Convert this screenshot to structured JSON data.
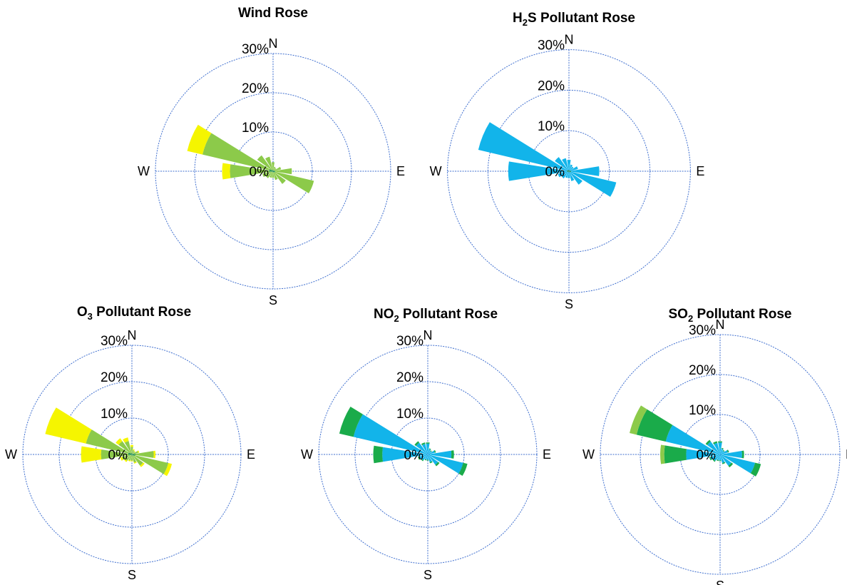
{
  "colors": {
    "ring": "#3f6fcf",
    "dark_green": "#0a8a3a",
    "green": "#1aab4a",
    "light_green": "#8cca4a",
    "yellow": "#f5f500",
    "cyan": "#12b4ea"
  },
  "chart_data": [
    {
      "type": "polar-bar",
      "title": "Wind Rose",
      "directions": [
        "N",
        "E",
        "S",
        "W"
      ],
      "radial_ticks": [
        "0%",
        "10%",
        "20%",
        "30%"
      ],
      "rlim": [
        0,
        30
      ],
      "sectors": 16,
      "stack_order": [
        "dark_green",
        "light_green",
        "yellow"
      ],
      "stacks": [
        [
          0.3,
          2.0,
          0.0
        ],
        [
          0.2,
          1.0,
          0.0
        ],
        [
          0.2,
          0.8,
          0.0
        ],
        [
          0.3,
          1.8,
          0.0
        ],
        [
          0.5,
          4.3,
          0.0
        ],
        [
          0.6,
          10.1,
          0.0
        ],
        [
          0.3,
          3.7,
          0.0
        ],
        [
          0.3,
          2.0,
          0.0
        ],
        [
          0.2,
          1.5,
          0.0
        ],
        [
          0.2,
          1.5,
          0.0
        ],
        [
          0.2,
          2.0,
          0.0
        ],
        [
          0.3,
          2.5,
          0.0
        ],
        [
          1.0,
          10.0,
          2.0
        ],
        [
          1.0,
          17.5,
          4.0
        ],
        [
          0.5,
          4.5,
          0.0
        ],
        [
          0.3,
          3.5,
          0.0
        ]
      ]
    },
    {
      "type": "polar-bar",
      "title_main": "H",
      "title_sub": "2",
      "title_rest": "S Pollutant Rose",
      "directions": [
        "N",
        "E",
        "S",
        "W"
      ],
      "radial_ticks": [
        "0%",
        "10%",
        "20%",
        "30%"
      ],
      "rlim": [
        0,
        30
      ],
      "sectors": 16,
      "stack_order": [
        "dark_green",
        "cyan"
      ],
      "stacks": [
        [
          0.3,
          2.5
        ],
        [
          0.2,
          1.5
        ],
        [
          0.2,
          1.2
        ],
        [
          0.3,
          2.0
        ],
        [
          0.5,
          7.0
        ],
        [
          0.5,
          11.5
        ],
        [
          0.3,
          3.8
        ],
        [
          0.3,
          2.2
        ],
        [
          0.2,
          1.5
        ],
        [
          0.2,
          1.5
        ],
        [
          0.2,
          2.0
        ],
        [
          0.3,
          2.5
        ],
        [
          0.5,
          14.5
        ],
        [
          0.5,
          22.5
        ],
        [
          0.3,
          4.0
        ],
        [
          0.3,
          3.0
        ]
      ]
    },
    {
      "type": "polar-bar",
      "title_main": "O",
      "title_sub": "3",
      "title_rest": " Pollutant Rose",
      "directions": [
        "N",
        "E",
        "S",
        "W"
      ],
      "radial_ticks": [
        "0%",
        "10%",
        "20%",
        "30%"
      ],
      "rlim": [
        0,
        30
      ],
      "sectors": 16,
      "stack_order": [
        "dark_green",
        "light_green",
        "yellow"
      ],
      "stacks": [
        [
          0.3,
          1.8,
          0.5
        ],
        [
          0.2,
          1.0,
          0.3
        ],
        [
          0.2,
          0.8,
          0.2
        ],
        [
          0.3,
          1.5,
          0.3
        ],
        [
          1.0,
          5.0,
          0.5
        ],
        [
          0.8,
          9.5,
          1.0
        ],
        [
          0.3,
          3.5,
          0.5
        ],
        [
          0.3,
          2.0,
          0.3
        ],
        [
          0.2,
          1.5,
          0.2
        ],
        [
          0.2,
          1.5,
          0.3
        ],
        [
          0.2,
          2.0,
          0.4
        ],
        [
          0.3,
          2.5,
          0.5
        ],
        [
          1.0,
          7.5,
          5.5
        ],
        [
          1.0,
          12.0,
          11.5
        ],
        [
          0.5,
          4.0,
          1.0
        ],
        [
          0.3,
          3.5,
          1.0
        ]
      ]
    },
    {
      "type": "polar-bar",
      "title_main": "NO",
      "title_sub": "2",
      "title_rest": " Pollutant Rose",
      "directions": [
        "N",
        "E",
        "S",
        "W"
      ],
      "radial_ticks": [
        "0%",
        "10%",
        "20%",
        "30%"
      ],
      "rlim": [
        0,
        30
      ],
      "sectors": 16,
      "stack_order": [
        "cyan",
        "green"
      ],
      "stacks": [
        [
          3.0,
          0.3
        ],
        [
          1.5,
          0.2
        ],
        [
          1.2,
          0.2
        ],
        [
          2.0,
          0.3
        ],
        [
          6.5,
          0.7
        ],
        [
          10.0,
          1.2
        ],
        [
          3.5,
          0.5
        ],
        [
          2.2,
          0.3
        ],
        [
          1.5,
          0.2
        ],
        [
          1.5,
          0.2
        ],
        [
          2.0,
          0.3
        ],
        [
          2.5,
          0.3
        ],
        [
          12.5,
          2.5
        ],
        [
          21.0,
          4.0
        ],
        [
          4.0,
          0.5
        ],
        [
          3.0,
          0.4
        ]
      ]
    },
    {
      "type": "polar-bar",
      "title_main": "SO",
      "title_sub": "2",
      "title_rest": "  Pollutant Rose",
      "directions": [
        "N",
        "E",
        "S",
        "W"
      ],
      "radial_ticks": [
        "0%",
        "10%",
        "20%",
        "30%"
      ],
      "rlim": [
        0,
        30
      ],
      "sectors": 16,
      "stack_order": [
        "cyan",
        "green",
        "light_green"
      ],
      "stacks": [
        [
          3.0,
          0.3,
          0.0
        ],
        [
          1.5,
          0.2,
          0.0
        ],
        [
          1.2,
          0.2,
          0.0
        ],
        [
          2.0,
          0.3,
          0.0
        ],
        [
          5.5,
          0.5,
          0.0
        ],
        [
          9.0,
          1.5,
          0.0
        ],
        [
          3.5,
          0.5,
          0.0
        ],
        [
          2.2,
          0.3,
          0.0
        ],
        [
          1.5,
          0.2,
          0.0
        ],
        [
          1.5,
          0.2,
          0.0
        ],
        [
          2.0,
          0.3,
          0.0
        ],
        [
          2.5,
          0.3,
          0.0
        ],
        [
          8.5,
          5.5,
          1.0
        ],
        [
          14.0,
          7.5,
          1.8
        ],
        [
          4.0,
          0.5,
          0.0
        ],
        [
          3.0,
          0.4,
          0.0
        ]
      ]
    }
  ]
}
